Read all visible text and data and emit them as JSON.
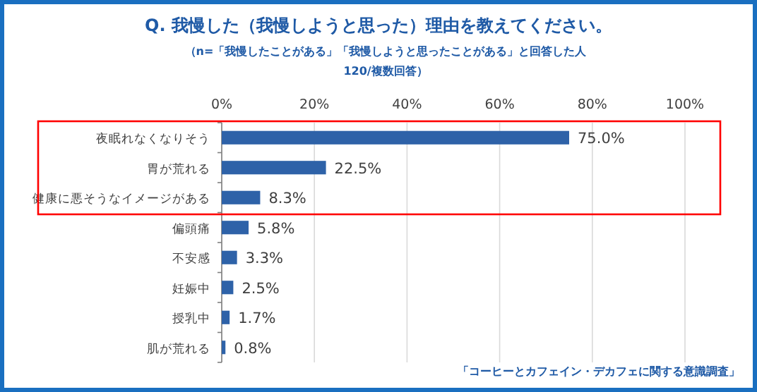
{
  "chart_data": {
    "type": "bar",
    "orientation": "horizontal",
    "title": "Q. 我慢した（我慢しようと思った）理由を教えてください。",
    "subtitle": "（n=「我慢したことがある」「我慢しようと思ったことがある」と回答した人120/複数回答）",
    "categories": [
      "夜眠れなくなりそう",
      "胃が荒れる",
      "健康に悪そうなイメージがある",
      "偏頭痛",
      "不安感",
      "妊娠中",
      "授乳中",
      "肌が荒れる"
    ],
    "values": [
      75.0,
      22.5,
      8.3,
      5.8,
      3.3,
      2.5,
      1.7,
      0.8
    ],
    "value_labels": [
      "75.0%",
      "22.5%",
      "8.3%",
      "5.8%",
      "3.3%",
      "2.5%",
      "1.7%",
      "0.8%"
    ],
    "color": "#2e62a8",
    "xlim": [
      0,
      100
    ],
    "xticks": [
      {
        "value": 0,
        "label": "0%"
      },
      {
        "value": 20,
        "label": "20%"
      },
      {
        "value": 40,
        "label": "40%"
      },
      {
        "value": 60,
        "label": "60%"
      },
      {
        "value": 80,
        "label": "80%"
      },
      {
        "value": 100,
        "label": "100%"
      }
    ],
    "grid": "x",
    "annotations": [
      "「コーヒーとカフェイン・デカフェに関する意識調査」"
    ]
  }
}
